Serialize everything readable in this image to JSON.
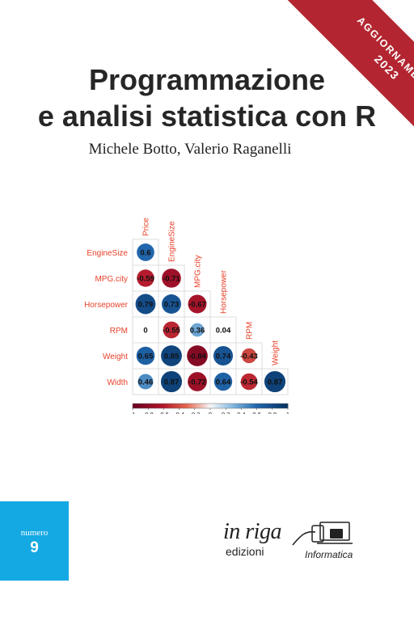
{
  "cover": {
    "banner_line1": "AGGIORNAMENTO",
    "banner_line2": "2023",
    "title_line1": "Programmazione",
    "title_line2": "e analisi statistica con R",
    "authors": "Michele Botto, Valerio Raganelli",
    "series_label": "numero",
    "series_number": "9",
    "publisher_script": "in riga",
    "publisher_name": "edizioni",
    "publisher_series": "Informatica"
  },
  "colors": {
    "banner": "#b32631",
    "numero_box": "#15a9e4",
    "label_red": "#e8412a",
    "positive": "#2166ac",
    "negative": "#b2182b"
  },
  "chart_data": {
    "type": "heatmap",
    "variant": "lower-triangle correlation matrix (corrplot mixed: circles with coefficients)",
    "row_labels": [
      "EngineSize",
      "MPG.city",
      "Horsepower",
      "RPM",
      "Weight",
      "Width"
    ],
    "col_labels": [
      "Price",
      "EngineSize",
      "MPG.city",
      "Horsepower",
      "RPM",
      "Weight"
    ],
    "matrix": [
      [
        0.6,
        null,
        null,
        null,
        null,
        null
      ],
      [
        -0.59,
        -0.71,
        null,
        null,
        null,
        null
      ],
      [
        0.79,
        0.73,
        -0.67,
        null,
        null,
        null
      ],
      [
        0,
        -0.55,
        0.36,
        0.04,
        null,
        null
      ],
      [
        0.65,
        0.85,
        -0.84,
        0.74,
        -0.43,
        null
      ],
      [
        0.46,
        0.87,
        -0.72,
        0.64,
        -0.54,
        0.87
      ]
    ],
    "value_labels": [
      [
        "0.6"
      ],
      [
        "-0.59",
        "-0.71"
      ],
      [
        "0.79",
        "0.73",
        "-0.67"
      ],
      [
        "0",
        "-0.55",
        "0.36",
        "0.04"
      ],
      [
        "0.65",
        "0.85",
        "-0.84",
        "0.74",
        "-0.43"
      ],
      [
        "0.46",
        "0.87",
        "-0.72",
        "0.64",
        "-0.54",
        "0.87"
      ]
    ],
    "color_scale": {
      "range": [
        -1,
        1
      ],
      "tick_labels": [
        "-1",
        "-0.8",
        "-0.6",
        "-0.4",
        "-0.2",
        "0",
        "0.2",
        "0.4",
        "0.6",
        "0.8",
        "1"
      ],
      "tick_values": [
        -1,
        -0.8,
        -0.6,
        -0.4,
        -0.2,
        0,
        0.2,
        0.4,
        0.6,
        0.8,
        1
      ]
    },
    "legend": "bottom"
  }
}
